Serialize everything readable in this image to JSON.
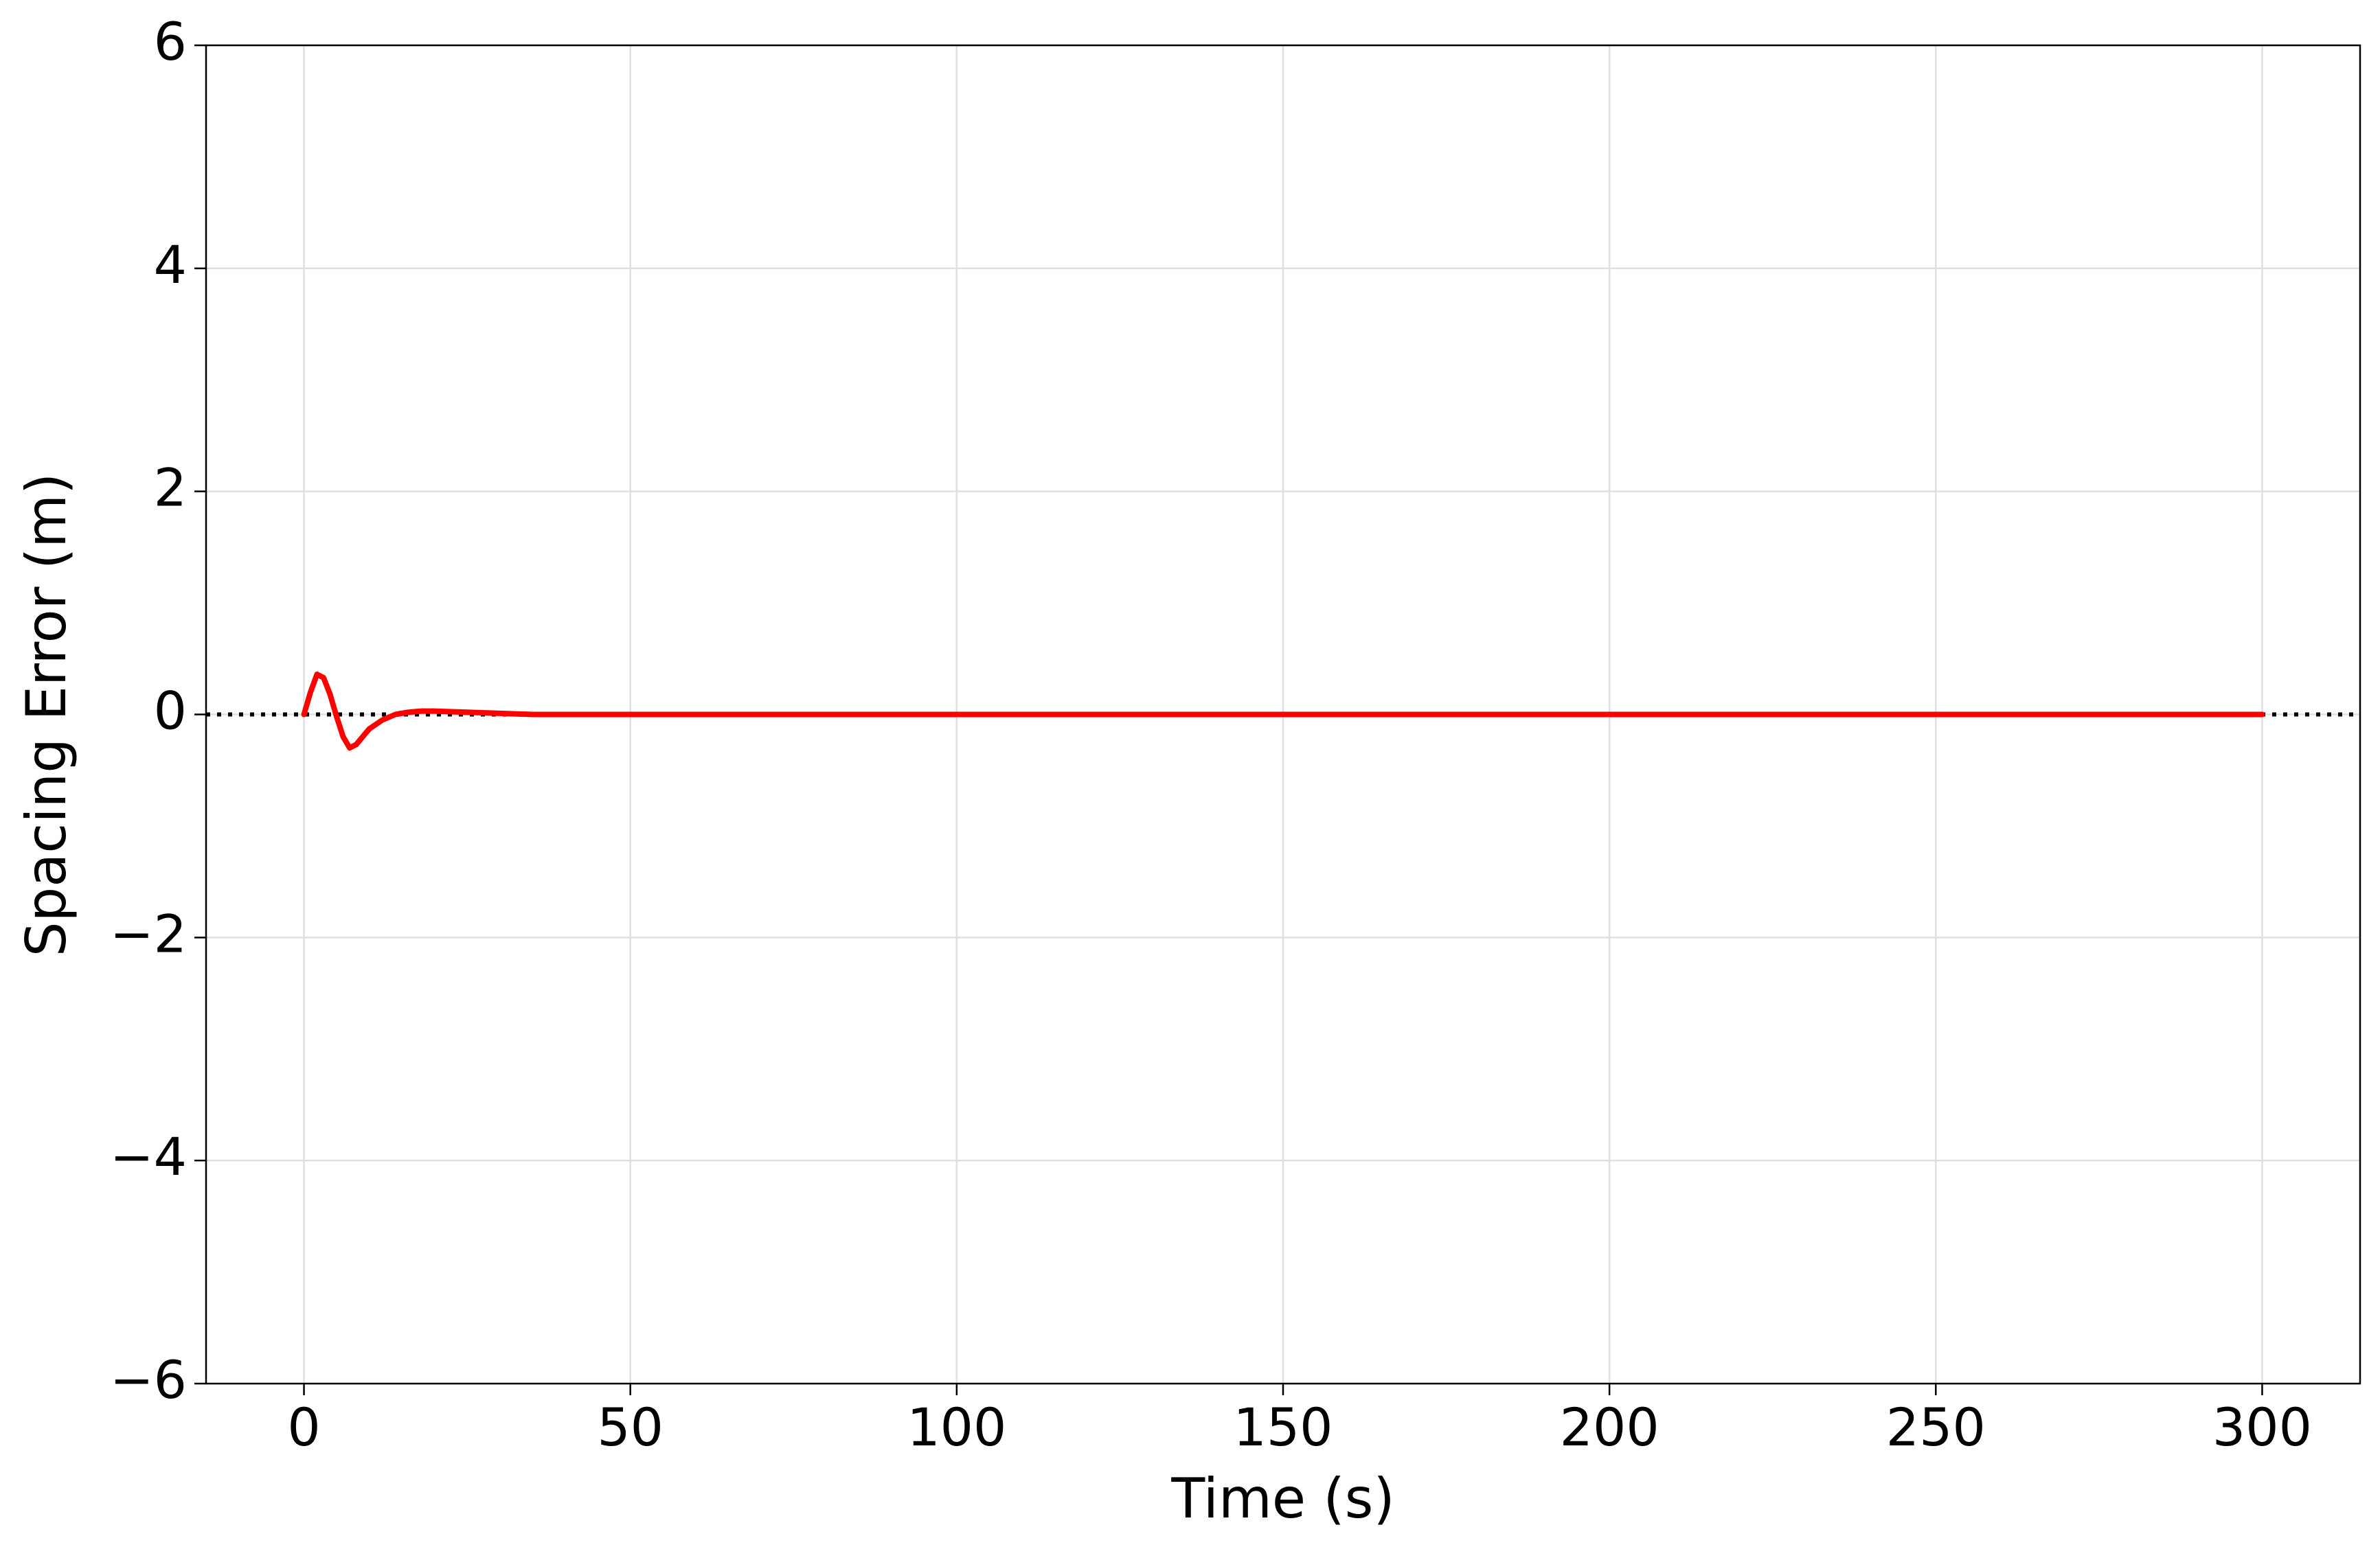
{
  "chart_data": {
    "type": "line",
    "xlabel": "Time (s)",
    "ylabel": "Spacing Error (m)",
    "x": [
      0,
      1,
      2,
      3,
      4,
      5,
      6,
      7,
      8,
      9,
      10,
      12,
      14,
      16,
      18,
      20,
      25,
      30,
      35,
      40,
      50,
      100,
      150,
      200,
      250,
      300
    ],
    "series": [
      {
        "color": "#ff0000",
        "values": [
          0,
          0.2,
          0.36,
          0.33,
          0.18,
          -0.02,
          -0.2,
          -0.3,
          -0.27,
          -0.2,
          -0.13,
          -0.05,
          0,
          0.02,
          0.03,
          0.03,
          0.02,
          0.01,
          0,
          0,
          0,
          0,
          0,
          0,
          0,
          0
        ]
      }
    ],
    "hline": {
      "y": 0,
      "color": "#000000",
      "style": "dotted"
    },
    "xlim": [
      -15,
      315
    ],
    "xticks": [
      0,
      50,
      100,
      150,
      200,
      250,
      300
    ],
    "ylim": [
      -6,
      6
    ],
    "yticks": [
      {
        "value": -6,
        "label": "−6"
      },
      {
        "value": -4,
        "label": "−4"
      },
      {
        "value": -2,
        "label": "−2"
      },
      0,
      2,
      4,
      6
    ],
    "grid": true
  }
}
